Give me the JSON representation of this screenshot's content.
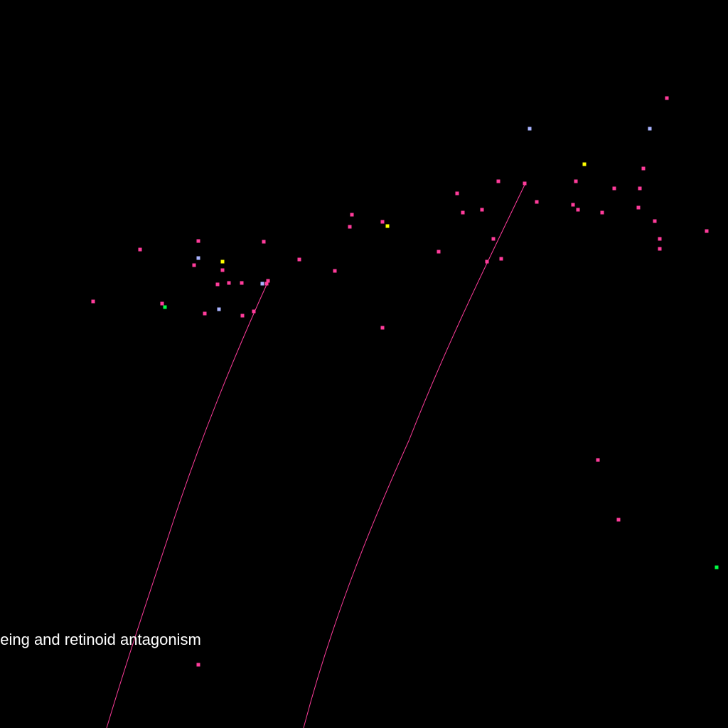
{
  "colors": {
    "background": "#000000",
    "edge": "#ff3c9b",
    "node_magenta": "#ff3c9b",
    "node_lavender": "#aab4ff",
    "node_yellow": "#ffff00",
    "node_green": "#00ff44",
    "label": "#ffffff"
  },
  "label": {
    "text": "geing and retinoid antagonism"
  }
}
